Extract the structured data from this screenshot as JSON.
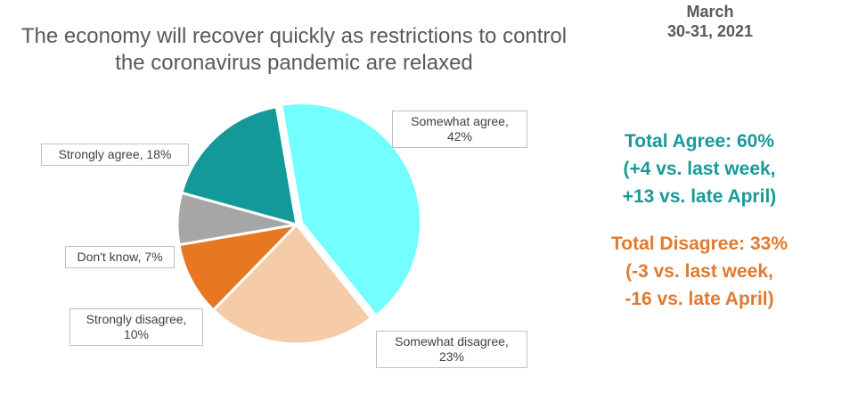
{
  "header": {
    "title_line1": "The economy will recover quickly as restrictions to control",
    "title_line2": "the coronavirus pandemic are relaxed",
    "date_line1": "March",
    "date_line2": "30-31, 2021"
  },
  "summary": {
    "agree": [
      "Total Agree: 60%",
      "(+4 vs. last week,",
      "+13 vs. late April)"
    ],
    "disagree": [
      "Total Disagree: 33%",
      "(-3 vs. last week,",
      "-16 vs. late April)"
    ]
  },
  "chart_data": {
    "type": "pie",
    "title": "The economy will recover quickly as restrictions to control the coronavirus pandemic are relaxed",
    "slices": [
      {
        "label": "Somewhat agree",
        "value": 42,
        "color": "#73ffff",
        "display_line1": "Somewhat agree,",
        "display_line2": "42%"
      },
      {
        "label": "Somewhat disagree",
        "value": 23,
        "color": "#f6cba8",
        "display_line1": "Somewhat disagree,",
        "display_line2": "23%"
      },
      {
        "label": "Strongly disagree",
        "value": 10,
        "color": "#e87722",
        "display_line1": "Strongly disagree,",
        "display_line2": "10%"
      },
      {
        "label": "Don't know",
        "value": 7,
        "color": "#a6a6a6",
        "display_line1": "Don't know, 7%",
        "display_line2": ""
      },
      {
        "label": "Strongly agree",
        "value": 18,
        "color": "#149999",
        "display_line1": "Strongly agree, 18%",
        "display_line2": ""
      }
    ]
  }
}
